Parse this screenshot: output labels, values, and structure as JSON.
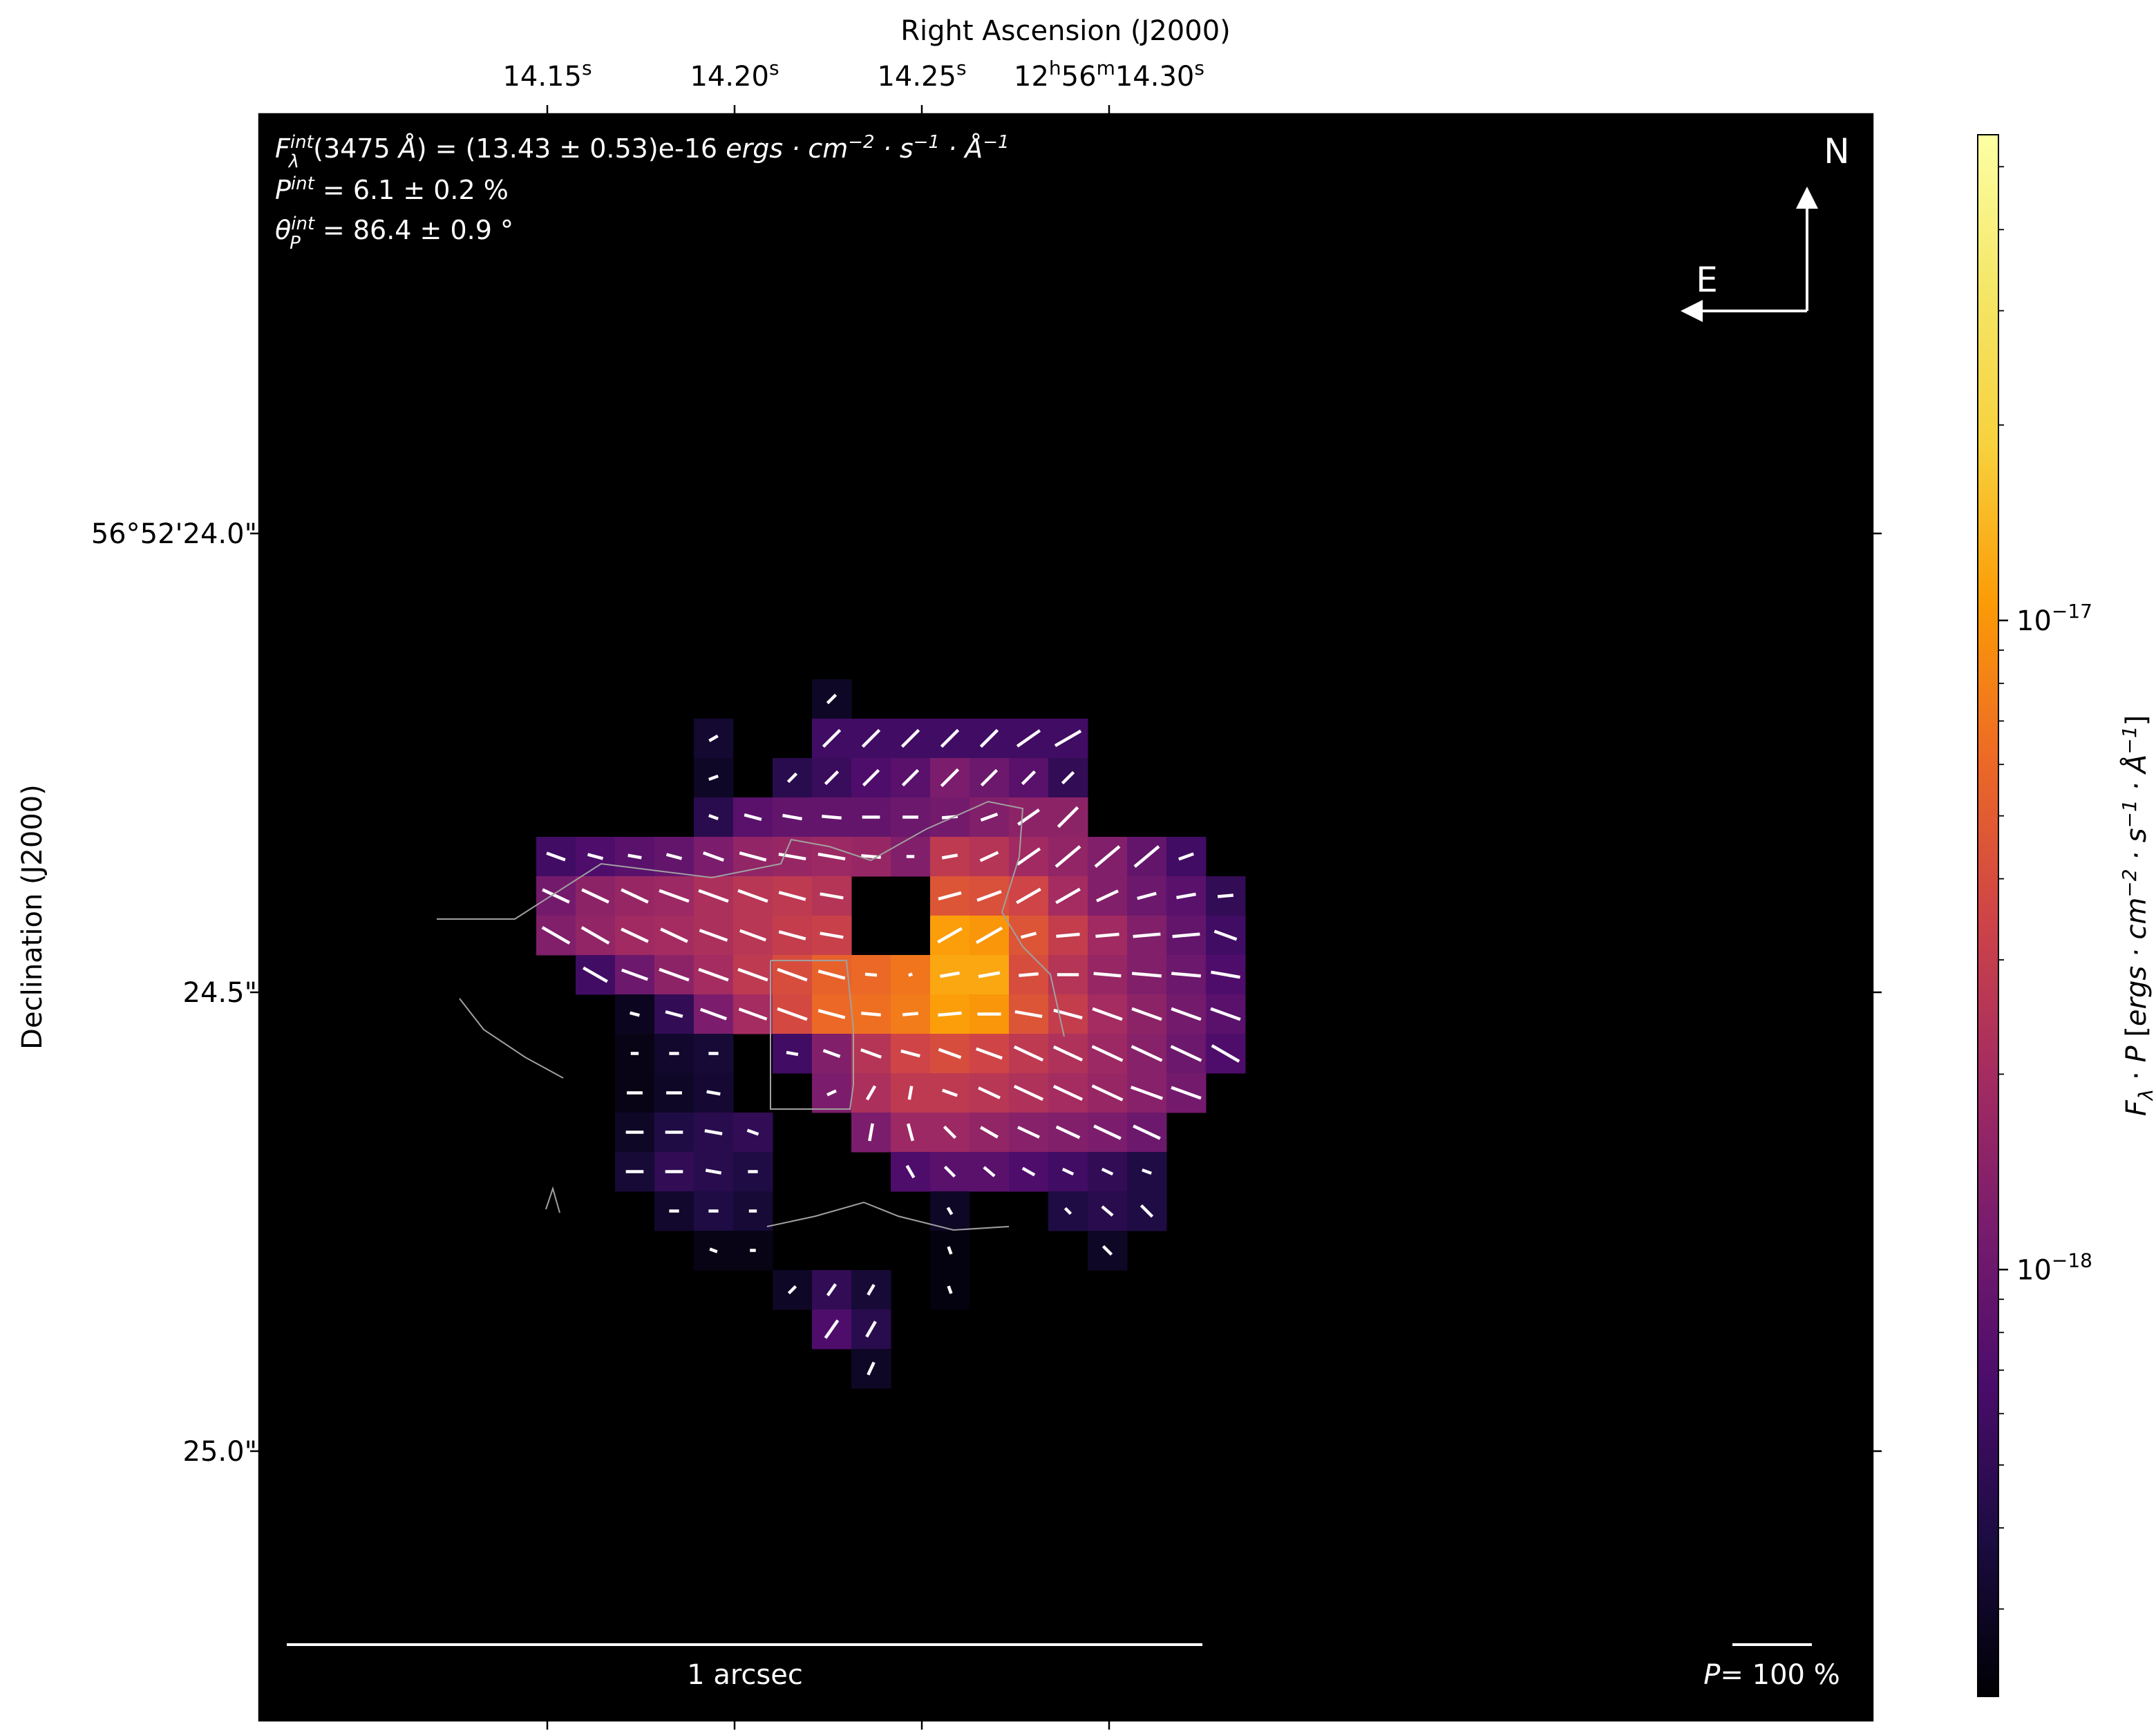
{
  "chart_data": {
    "type": "heatmap",
    "title": "",
    "xlabel": "Right Ascension (J2000)",
    "ylabel": "Declination (J2000)",
    "x_ticks": {
      "labels": [
        "14.15",
        "14.20",
        "14.25",
        "12h56m14.30"
      ],
      "display": [
        {
          "text": "14.15",
          "sup": "s"
        },
        {
          "text": "14.20",
          "sup": "s"
        },
        {
          "text": "14.25",
          "sup": "s"
        },
        {
          "parts": [
            [
              "12",
              ""
            ],
            [
              "h",
              "sup"
            ],
            [
              "56",
              ""
            ],
            [
              "m",
              "sup"
            ],
            [
              "14.30",
              ""
            ],
            [
              "s",
              "sup"
            ]
          ]
        }
      ],
      "values_s": [
        14.15,
        14.2,
        14.25,
        14.3
      ]
    },
    "y_ticks": {
      "labels": [
        "56°52'24.0\"",
        "24.5\"",
        "25.0\""
      ],
      "values_arcsec": [
        24.0,
        24.5,
        25.0
      ]
    },
    "colorbar": {
      "label": "F_λ · P [ergs · cm^-2 · s^-1 · Å^-1]",
      "scale": "log",
      "colormap": "inferno",
      "range": [
        2.2e-19,
        5.6e-17
      ],
      "major_ticks": [
        {
          "value": 1e-17,
          "label": "10",
          "exp": "−17"
        },
        {
          "value": 1e-18,
          "label": "10",
          "exp": "−18"
        }
      ]
    },
    "annotations": {
      "flux": {
        "label": "F_λ^int(3475 Å)",
        "value": "(13.43 ± 0.53)e-16",
        "unit": "ergs · cm^-2 · s^-1 · Å^-1"
      },
      "pol_degree": {
        "label": "P^int",
        "value": "6.1 ± 0.2 %"
      },
      "pol_angle": {
        "label": "θ_P^int",
        "value": "86.4 ± 0.9 °"
      },
      "compass": {
        "north": "N",
        "east": "E"
      },
      "scale_bar": "1 arcsec",
      "pol_scale": {
        "label": "P",
        "value": "= 100 %"
      }
    },
    "pixel_grid": {
      "note": "columns c=0 at RA 14.136 s, step ≈ 0.0026 s; rows r=0 at Dec 24.25\", step ≈ 0.0426\"",
      "pixels": [
        [
          10,
          -1,
          3e-19,
          45,
          0.3
        ],
        [
          7,
          0,
          3.3e-19,
          30,
          0.25
        ],
        [
          10,
          0,
          6e-19,
          45,
          0.6
        ],
        [
          11,
          0,
          6e-19,
          45,
          0.6
        ],
        [
          12,
          0,
          6e-19,
          45,
          0.6
        ],
        [
          13,
          0,
          6e-19,
          45,
          0.6
        ],
        [
          14,
          0,
          6e-19,
          45,
          0.6
        ],
        [
          15,
          0,
          6e-19,
          35,
          0.7
        ],
        [
          16,
          0,
          6e-19,
          30,
          0.75
        ],
        [
          7,
          1,
          3e-19,
          20,
          0.25
        ],
        [
          9,
          1,
          4.5e-19,
          45,
          0.3
        ],
        [
          10,
          1,
          5.5e-19,
          45,
          0.45
        ],
        [
          11,
          1,
          7e-19,
          45,
          0.55
        ],
        [
          12,
          1,
          8e-19,
          45,
          0.55
        ],
        [
          13,
          1,
          1.2e-18,
          45,
          0.6
        ],
        [
          14,
          1,
          1e-18,
          45,
          0.55
        ],
        [
          15,
          1,
          8e-19,
          45,
          0.45
        ],
        [
          16,
          1,
          5e-19,
          45,
          0.4
        ],
        [
          7,
          2,
          4.5e-19,
          -20,
          0.25
        ],
        [
          8,
          2,
          8e-19,
          -15,
          0.45
        ],
        [
          9,
          2,
          9e-19,
          -10,
          0.5
        ],
        [
          10,
          2,
          9e-19,
          -5,
          0.5
        ],
        [
          11,
          2,
          9e-19,
          0,
          0.45
        ],
        [
          12,
          2,
          1e-18,
          0,
          0.4
        ],
        [
          13,
          2,
          1.1e-18,
          5,
          0.4
        ],
        [
          14,
          2,
          1.3e-18,
          20,
          0.45
        ],
        [
          15,
          2,
          1.5e-18,
          35,
          0.65
        ],
        [
          16,
          2,
          1.5e-18,
          45,
          0.7
        ],
        [
          3,
          3,
          6e-19,
          -20,
          0.5
        ],
        [
          4,
          3,
          7e-19,
          -15,
          0.4
        ],
        [
          5,
          3,
          8e-19,
          -10,
          0.35
        ],
        [
          6,
          3,
          9e-19,
          -15,
          0.4
        ],
        [
          7,
          3,
          1.2e-18,
          -20,
          0.55
        ],
        [
          8,
          3,
          1.6e-18,
          -15,
          0.7
        ],
        [
          9,
          3,
          1.7e-18,
          -10,
          0.7
        ],
        [
          10,
          3,
          1.8e-18,
          -10,
          0.7
        ],
        [
          11,
          3,
          1.7e-18,
          -5,
          0.5
        ],
        [
          12,
          3,
          1.3e-18,
          0,
          0.2
        ],
        [
          13,
          3,
          2.8e-18,
          10,
          0.4
        ],
        [
          14,
          3,
          2.5e-18,
          25,
          0.5
        ],
        [
          15,
          3,
          1.9e-18,
          35,
          0.7
        ],
        [
          16,
          3,
          1.6e-18,
          40,
          0.8
        ],
        [
          17,
          3,
          1.3e-18,
          40,
          0.8
        ],
        [
          18,
          3,
          9e-19,
          40,
          0.8
        ],
        [
          19,
          3,
          6e-19,
          20,
          0.4
        ],
        [
          3,
          4,
          1.1e-18,
          -25,
          0.75
        ],
        [
          4,
          4,
          1.5e-18,
          -25,
          0.75
        ],
        [
          5,
          4,
          1.7e-18,
          -25,
          0.75
        ],
        [
          6,
          4,
          1.8e-18,
          -20,
          0.8
        ],
        [
          7,
          4,
          2.2e-18,
          -20,
          0.8
        ],
        [
          8,
          4,
          2.6e-18,
          -20,
          0.8
        ],
        [
          9,
          4,
          2.8e-18,
          -15,
          0.7
        ],
        [
          10,
          4,
          2.5e-18,
          -10,
          0.6
        ],
        [
          13,
          4,
          4.5e-18,
          15,
          0.6
        ],
        [
          14,
          4,
          4.2e-18,
          20,
          0.65
        ],
        [
          15,
          4,
          3.5e-18,
          30,
          0.7
        ],
        [
          16,
          4,
          2e-18,
          30,
          0.7
        ],
        [
          17,
          4,
          1.3e-18,
          25,
          0.6
        ],
        [
          18,
          4,
          1e-18,
          15,
          0.5
        ],
        [
          19,
          4,
          8e-19,
          10,
          0.5
        ],
        [
          20,
          4,
          5e-19,
          5,
          0.4
        ],
        [
          3,
          5,
          1.3e-18,
          -30,
          0.8
        ],
        [
          4,
          5,
          1.6e-18,
          -30,
          0.8
        ],
        [
          5,
          5,
          1.9e-18,
          -25,
          0.75
        ],
        [
          6,
          5,
          2e-18,
          -25,
          0.75
        ],
        [
          7,
          5,
          2.2e-18,
          -20,
          0.75
        ],
        [
          8,
          5,
          2.6e-18,
          -20,
          0.7
        ],
        [
          9,
          5,
          3e-18,
          -15,
          0.7
        ],
        [
          10,
          5,
          3.2e-18,
          -10,
          0.6
        ],
        [
          13,
          5,
          1.1e-17,
          30,
          0.7
        ],
        [
          14,
          5,
          1e-17,
          30,
          0.75
        ],
        [
          15,
          5,
          4.5e-18,
          15,
          0.4
        ],
        [
          16,
          5,
          3e-18,
          5,
          0.6
        ],
        [
          17,
          5,
          1.9e-18,
          5,
          0.6
        ],
        [
          18,
          5,
          1.3e-18,
          5,
          0.7
        ],
        [
          19,
          5,
          9e-19,
          5,
          0.7
        ],
        [
          20,
          5,
          6e-19,
          -20,
          0.6
        ],
        [
          4,
          6,
          6e-19,
          -30,
          0.7
        ],
        [
          5,
          6,
          1e-18,
          -20,
          0.7
        ],
        [
          6,
          6,
          1.5e-18,
          -20,
          0.8
        ],
        [
          7,
          6,
          2e-18,
          -20,
          0.8
        ],
        [
          8,
          6,
          2.8e-18,
          -20,
          0.8
        ],
        [
          9,
          6,
          4e-18,
          -20,
          0.8
        ],
        [
          10,
          6,
          5.5e-18,
          -15,
          0.7
        ],
        [
          11,
          6,
          6e-18,
          -5,
          0.3
        ],
        [
          12,
          6,
          7e-18,
          20,
          0.1
        ],
        [
          13,
          6,
          1.2e-17,
          10,
          0.5
        ],
        [
          14,
          6,
          1.2e-17,
          10,
          0.55
        ],
        [
          15,
          6,
          4e-18,
          5,
          0.5
        ],
        [
          16,
          6,
          2.5e-18,
          0,
          0.55
        ],
        [
          17,
          6,
          1.7e-18,
          -5,
          0.7
        ],
        [
          18,
          6,
          1.3e-18,
          -5,
          0.75
        ],
        [
          19,
          6,
          1e-18,
          -5,
          0.75
        ],
        [
          20,
          6,
          7e-19,
          -10,
          0.75
        ],
        [
          5,
          7,
          2.8e-19,
          -15,
          0.25
        ],
        [
          6,
          7,
          5e-19,
          -15,
          0.45
        ],
        [
          7,
          7,
          1.2e-18,
          -20,
          0.7
        ],
        [
          8,
          7,
          2e-18,
          -20,
          0.75
        ],
        [
          9,
          7,
          3.8e-18,
          -20,
          0.8
        ],
        [
          10,
          7,
          6e-18,
          -15,
          0.7
        ],
        [
          11,
          7,
          6.5e-18,
          -5,
          0.5
        ],
        [
          12,
          7,
          7.5e-18,
          5,
          0.4
        ],
        [
          13,
          7,
          1.1e-17,
          5,
          0.6
        ],
        [
          14,
          7,
          1e-17,
          0,
          0.6
        ],
        [
          15,
          7,
          4.5e-18,
          -10,
          0.7
        ],
        [
          16,
          7,
          3e-18,
          -15,
          0.75
        ],
        [
          17,
          7,
          2e-18,
          -20,
          0.8
        ],
        [
          18,
          7,
          1.5e-18,
          -20,
          0.8
        ],
        [
          19,
          7,
          1.1e-18,
          -20,
          0.8
        ],
        [
          20,
          7,
          8e-19,
          -20,
          0.8
        ],
        [
          5,
          8,
          2.6e-19,
          0,
          0.2
        ],
        [
          6,
          8,
          3.2e-19,
          0,
          0.25
        ],
        [
          7,
          8,
          3.5e-19,
          0,
          0.25
        ],
        [
          9,
          8,
          6e-19,
          -10,
          0.3
        ],
        [
          10,
          8,
          1.3e-18,
          -20,
          0.45
        ],
        [
          11,
          8,
          2.5e-18,
          -20,
          0.55
        ],
        [
          12,
          8,
          3.5e-18,
          -15,
          0.5
        ],
        [
          13,
          8,
          4e-18,
          -20,
          0.6
        ],
        [
          14,
          8,
          3.5e-18,
          -20,
          0.7
        ],
        [
          15,
          8,
          2.8e-18,
          -25,
          0.8
        ],
        [
          16,
          8,
          2.3e-18,
          -25,
          0.8
        ],
        [
          17,
          8,
          1.8e-18,
          -25,
          0.85
        ],
        [
          18,
          8,
          1.4e-18,
          -25,
          0.85
        ],
        [
          19,
          8,
          1e-18,
          -25,
          0.85
        ],
        [
          20,
          8,
          7e-19,
          -30,
          0.8
        ],
        [
          5,
          9,
          2.6e-19,
          0,
          0.4
        ],
        [
          6,
          9,
          3e-19,
          0,
          0.4
        ],
        [
          7,
          9,
          3.4e-19,
          -10,
          0.35
        ],
        [
          10,
          9,
          1.2e-18,
          25,
          0.25
        ],
        [
          11,
          9,
          2.2e-18,
          60,
          0.4
        ],
        [
          12,
          9,
          2.8e-18,
          80,
          0.35
        ],
        [
          13,
          9,
          2.8e-18,
          -20,
          0.4
        ],
        [
          14,
          9,
          2.6e-18,
          -25,
          0.6
        ],
        [
          15,
          9,
          2.3e-18,
          -25,
          0.8
        ],
        [
          16,
          9,
          2e-18,
          -25,
          0.8
        ],
        [
          17,
          9,
          1.7e-18,
          -25,
          0.85
        ],
        [
          18,
          9,
          1.4e-18,
          -20,
          0.85
        ],
        [
          19,
          9,
          1.1e-18,
          -20,
          0.8
        ],
        [
          5,
          10,
          3e-19,
          0,
          0.45
        ],
        [
          6,
          10,
          4e-19,
          0,
          0.45
        ],
        [
          7,
          10,
          4.5e-19,
          -10,
          0.45
        ],
        [
          8,
          10,
          5e-19,
          -20,
          0.3
        ],
        [
          11,
          10,
          1.2e-18,
          80,
          0.45
        ],
        [
          12,
          10,
          1.8e-18,
          -75,
          0.45
        ],
        [
          13,
          10,
          1.8e-18,
          -45,
          0.4
        ],
        [
          14,
          10,
          1.6e-18,
          -30,
          0.5
        ],
        [
          15,
          10,
          1.4e-18,
          -25,
          0.6
        ],
        [
          16,
          10,
          1.3e-18,
          -25,
          0.65
        ],
        [
          17,
          10,
          1.2e-18,
          -25,
          0.75
        ],
        [
          18,
          10,
          1e-18,
          -25,
          0.75
        ],
        [
          5,
          11,
          3.5e-19,
          0,
          0.45
        ],
        [
          6,
          11,
          5e-19,
          0,
          0.45
        ],
        [
          7,
          11,
          4.5e-19,
          -10,
          0.4
        ],
        [
          8,
          11,
          4e-19,
          0,
          0.25
        ],
        [
          12,
          11,
          7e-19,
          -60,
          0.35
        ],
        [
          13,
          11,
          8e-19,
          -45,
          0.35
        ],
        [
          14,
          11,
          8e-19,
          -40,
          0.35
        ],
        [
          15,
          11,
          7e-19,
          -30,
          0.35
        ],
        [
          16,
          11,
          6e-19,
          -25,
          0.3
        ],
        [
          17,
          11,
          5e-19,
          -25,
          0.3
        ],
        [
          18,
          11,
          4e-19,
          -20,
          0.25
        ],
        [
          6,
          12,
          3.2e-19,
          0,
          0.25
        ],
        [
          7,
          12,
          4e-19,
          0,
          0.25
        ],
        [
          8,
          12,
          3.5e-19,
          0,
          0.2
        ],
        [
          13,
          12,
          3e-19,
          -60,
          0.2
        ],
        [
          16,
          12,
          4e-19,
          -45,
          0.2
        ],
        [
          17,
          12,
          4.5e-19,
          -40,
          0.35
        ],
        [
          18,
          12,
          4e-19,
          -45,
          0.4
        ],
        [
          7,
          13,
          2.6e-19,
          -20,
          0.2
        ],
        [
          8,
          13,
          2.6e-19,
          0,
          0.15
        ],
        [
          13,
          13,
          2.4e-19,
          -70,
          0.2
        ],
        [
          17,
          13,
          3e-19,
          -45,
          0.3
        ],
        [
          9,
          14,
          3e-19,
          45,
          0.25
        ],
        [
          10,
          14,
          5e-19,
          55,
          0.35
        ],
        [
          11,
          14,
          3.5e-19,
          60,
          0.3
        ],
        [
          13,
          14,
          2.4e-19,
          -70,
          0.2
        ],
        [
          10,
          15,
          7e-19,
          55,
          0.55
        ],
        [
          11,
          15,
          4.5e-19,
          60,
          0.45
        ],
        [
          11,
          16,
          3e-19,
          65,
          0.35
        ]
      ]
    }
  }
}
